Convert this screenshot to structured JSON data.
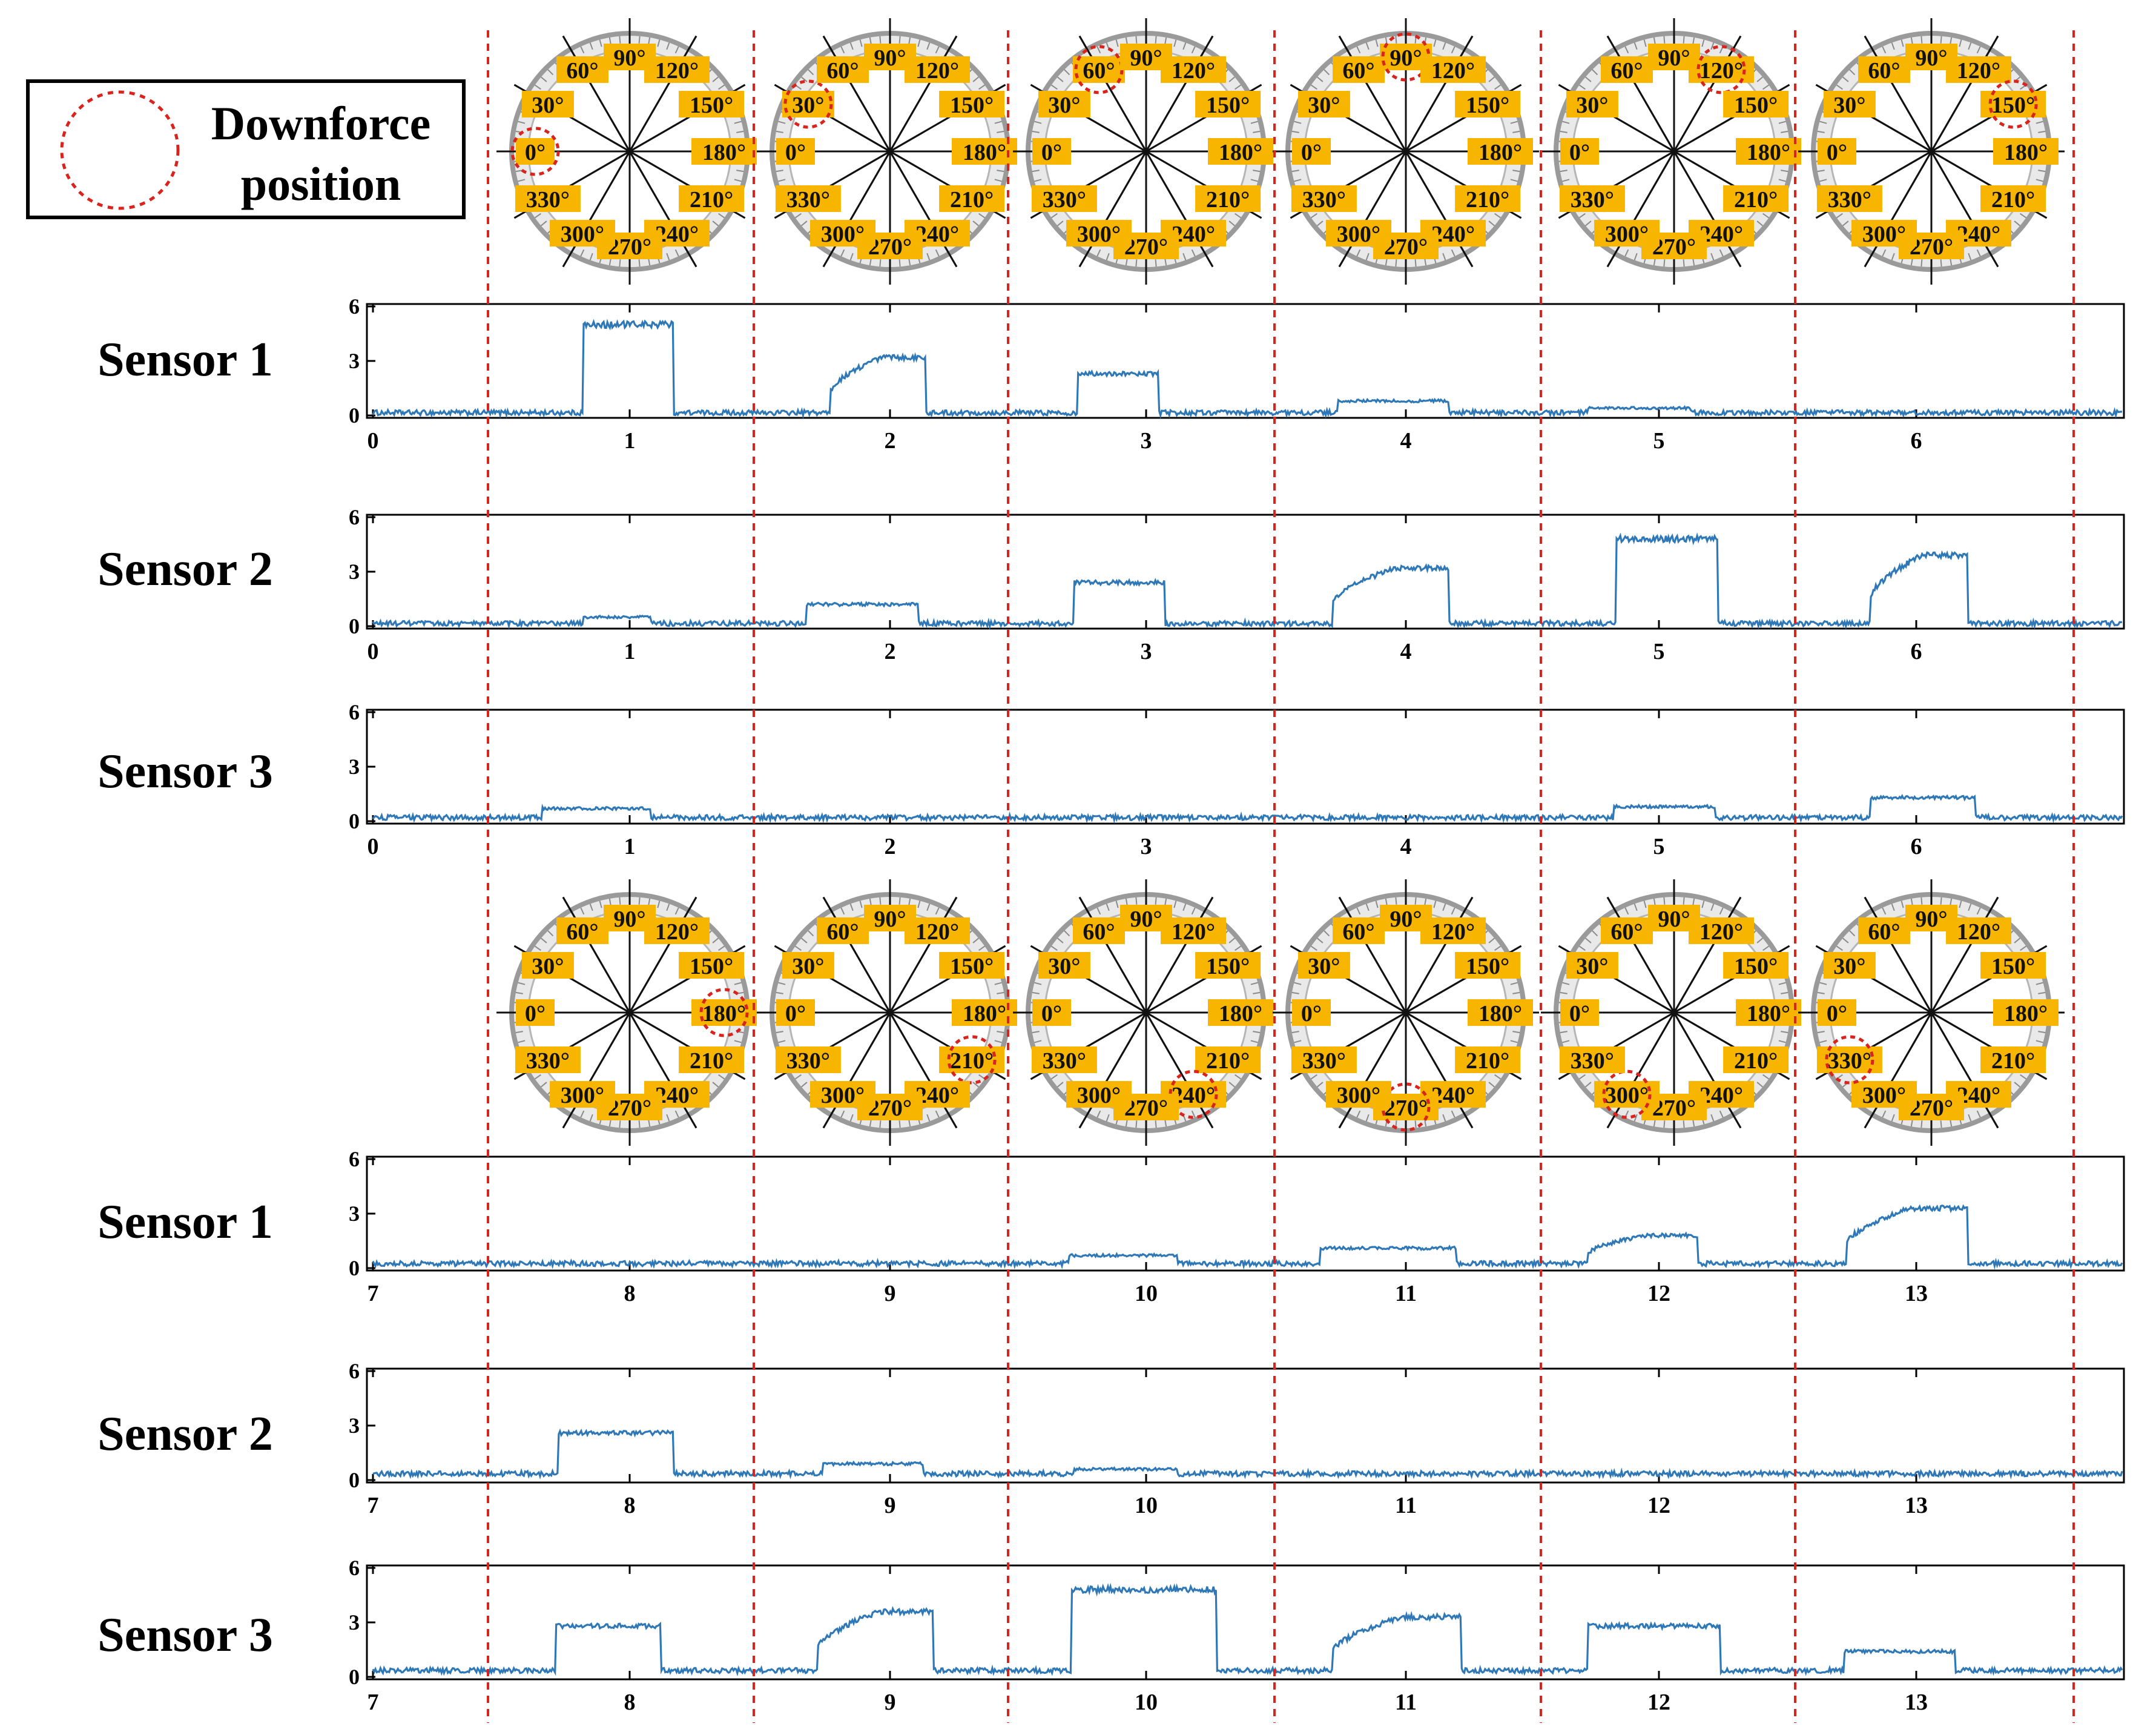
{
  "legend": {
    "label_line1": "Downforce",
    "label_line2": "position"
  },
  "dial": {
    "angle_labels": [
      "0°",
      "30°",
      "60°",
      "90°",
      "120°",
      "150°",
      "180°",
      "210°",
      "240°",
      "270°",
      "300°",
      "330°"
    ],
    "row1_downforce_deg": [
      0,
      30,
      60,
      90,
      120,
      150
    ],
    "row2_downforce_deg": [
      180,
      210,
      240,
      270,
      300,
      330
    ]
  },
  "colors": {
    "signal": "#2e78b7",
    "divider": "#d9241e",
    "label_bg": "#f7b500",
    "highlight": "#d9241e"
  },
  "chart_data": [
    {
      "type": "line",
      "name": "Sensor 1",
      "x_range": [
        0,
        6.8
      ],
      "ylim": [
        0,
        6
      ],
      "xticks": [
        0,
        1,
        2,
        3,
        4,
        5,
        6
      ],
      "yticks": [
        0,
        3,
        6
      ],
      "baseline": 0.15,
      "pulses": [
        {
          "start": 0.82,
          "end": 1.17,
          "level": 5.0,
          "shape": "flat"
        },
        {
          "start": 1.77,
          "end": 2.14,
          "level": 3.2,
          "shape": "ramp"
        },
        {
          "start": 2.73,
          "end": 3.05,
          "level": 2.3,
          "shape": "flat"
        },
        {
          "start": 3.74,
          "end": 4.17,
          "level": 0.8,
          "shape": "flat"
        },
        {
          "start": 4.72,
          "end": 5.12,
          "level": 0.4,
          "shape": "flat"
        }
      ]
    },
    {
      "type": "line",
      "name": "Sensor 2",
      "x_range": [
        0,
        6.8
      ],
      "ylim": [
        0,
        6
      ],
      "xticks": [
        0,
        1,
        2,
        3,
        4,
        5,
        6
      ],
      "yticks": [
        0,
        3,
        6
      ],
      "baseline": 0.15,
      "pulses": [
        {
          "start": 0.82,
          "end": 1.08,
          "level": 0.5,
          "shape": "flat"
        },
        {
          "start": 1.68,
          "end": 2.11,
          "level": 1.2,
          "shape": "flat"
        },
        {
          "start": 2.72,
          "end": 3.07,
          "level": 2.4,
          "shape": "flat"
        },
        {
          "start": 3.72,
          "end": 4.17,
          "level": 3.2,
          "shape": "ramp"
        },
        {
          "start": 4.83,
          "end": 5.23,
          "level": 4.8,
          "shape": "flat"
        },
        {
          "start": 5.82,
          "end": 6.2,
          "level": 3.9,
          "shape": "ramp"
        }
      ]
    },
    {
      "type": "line",
      "name": "Sensor 3",
      "x_range": [
        0,
        6.8
      ],
      "ylim": [
        0,
        6
      ],
      "xticks": [
        0,
        1,
        2,
        3,
        4,
        5,
        6
      ],
      "yticks": [
        0,
        3,
        6
      ],
      "baseline": 0.2,
      "pulses": [
        {
          "start": 0.66,
          "end": 1.08,
          "level": 0.7,
          "shape": "flat"
        },
        {
          "start": 4.82,
          "end": 5.22,
          "level": 0.8,
          "shape": "flat"
        },
        {
          "start": 5.82,
          "end": 6.23,
          "level": 1.3,
          "shape": "flat"
        }
      ]
    },
    {
      "type": "line",
      "name": "Sensor 1",
      "x_range": [
        7,
        13.8
      ],
      "ylim": [
        0,
        6
      ],
      "xticks": [
        7,
        8,
        9,
        10,
        11,
        12,
        13
      ],
      "yticks": [
        0,
        3,
        6
      ],
      "baseline": 0.25,
      "pulses": [
        {
          "start": 9.7,
          "end": 10.12,
          "level": 0.7,
          "shape": "flat"
        },
        {
          "start": 10.67,
          "end": 11.2,
          "level": 1.1,
          "shape": "flat"
        },
        {
          "start": 11.72,
          "end": 12.15,
          "level": 1.8,
          "shape": "ramp"
        },
        {
          "start": 12.73,
          "end": 13.2,
          "level": 3.3,
          "shape": "ramp"
        }
      ]
    },
    {
      "type": "line",
      "name": "Sensor 2",
      "x_range": [
        7,
        13.8
      ],
      "ylim": [
        0,
        6
      ],
      "xticks": [
        7,
        8,
        9,
        10,
        11,
        12,
        13
      ],
      "yticks": [
        0,
        3,
        6
      ],
      "baseline": 0.35,
      "pulses": [
        {
          "start": 7.72,
          "end": 8.17,
          "level": 2.6,
          "shape": "flat"
        },
        {
          "start": 8.74,
          "end": 9.13,
          "level": 0.9,
          "shape": "flat"
        },
        {
          "start": 9.72,
          "end": 10.12,
          "level": 0.6,
          "shape": "flat"
        }
      ]
    },
    {
      "type": "line",
      "name": "Sensor 3",
      "x_range": [
        7,
        13.8
      ],
      "ylim": [
        0,
        6
      ],
      "xticks": [
        7,
        8,
        9,
        10,
        11,
        12,
        13
      ],
      "yticks": [
        0,
        3,
        6
      ],
      "baseline": 0.35,
      "pulses": [
        {
          "start": 7.71,
          "end": 8.12,
          "level": 2.8,
          "shape": "flat"
        },
        {
          "start": 8.72,
          "end": 9.17,
          "level": 3.6,
          "shape": "ramp"
        },
        {
          "start": 9.71,
          "end": 10.27,
          "level": 4.8,
          "shape": "flat"
        },
        {
          "start": 10.72,
          "end": 11.22,
          "level": 3.3,
          "shape": "ramp"
        },
        {
          "start": 11.72,
          "end": 12.24,
          "level": 2.8,
          "shape": "flat"
        },
        {
          "start": 12.72,
          "end": 13.15,
          "level": 1.4,
          "shape": "flat"
        }
      ]
    }
  ]
}
